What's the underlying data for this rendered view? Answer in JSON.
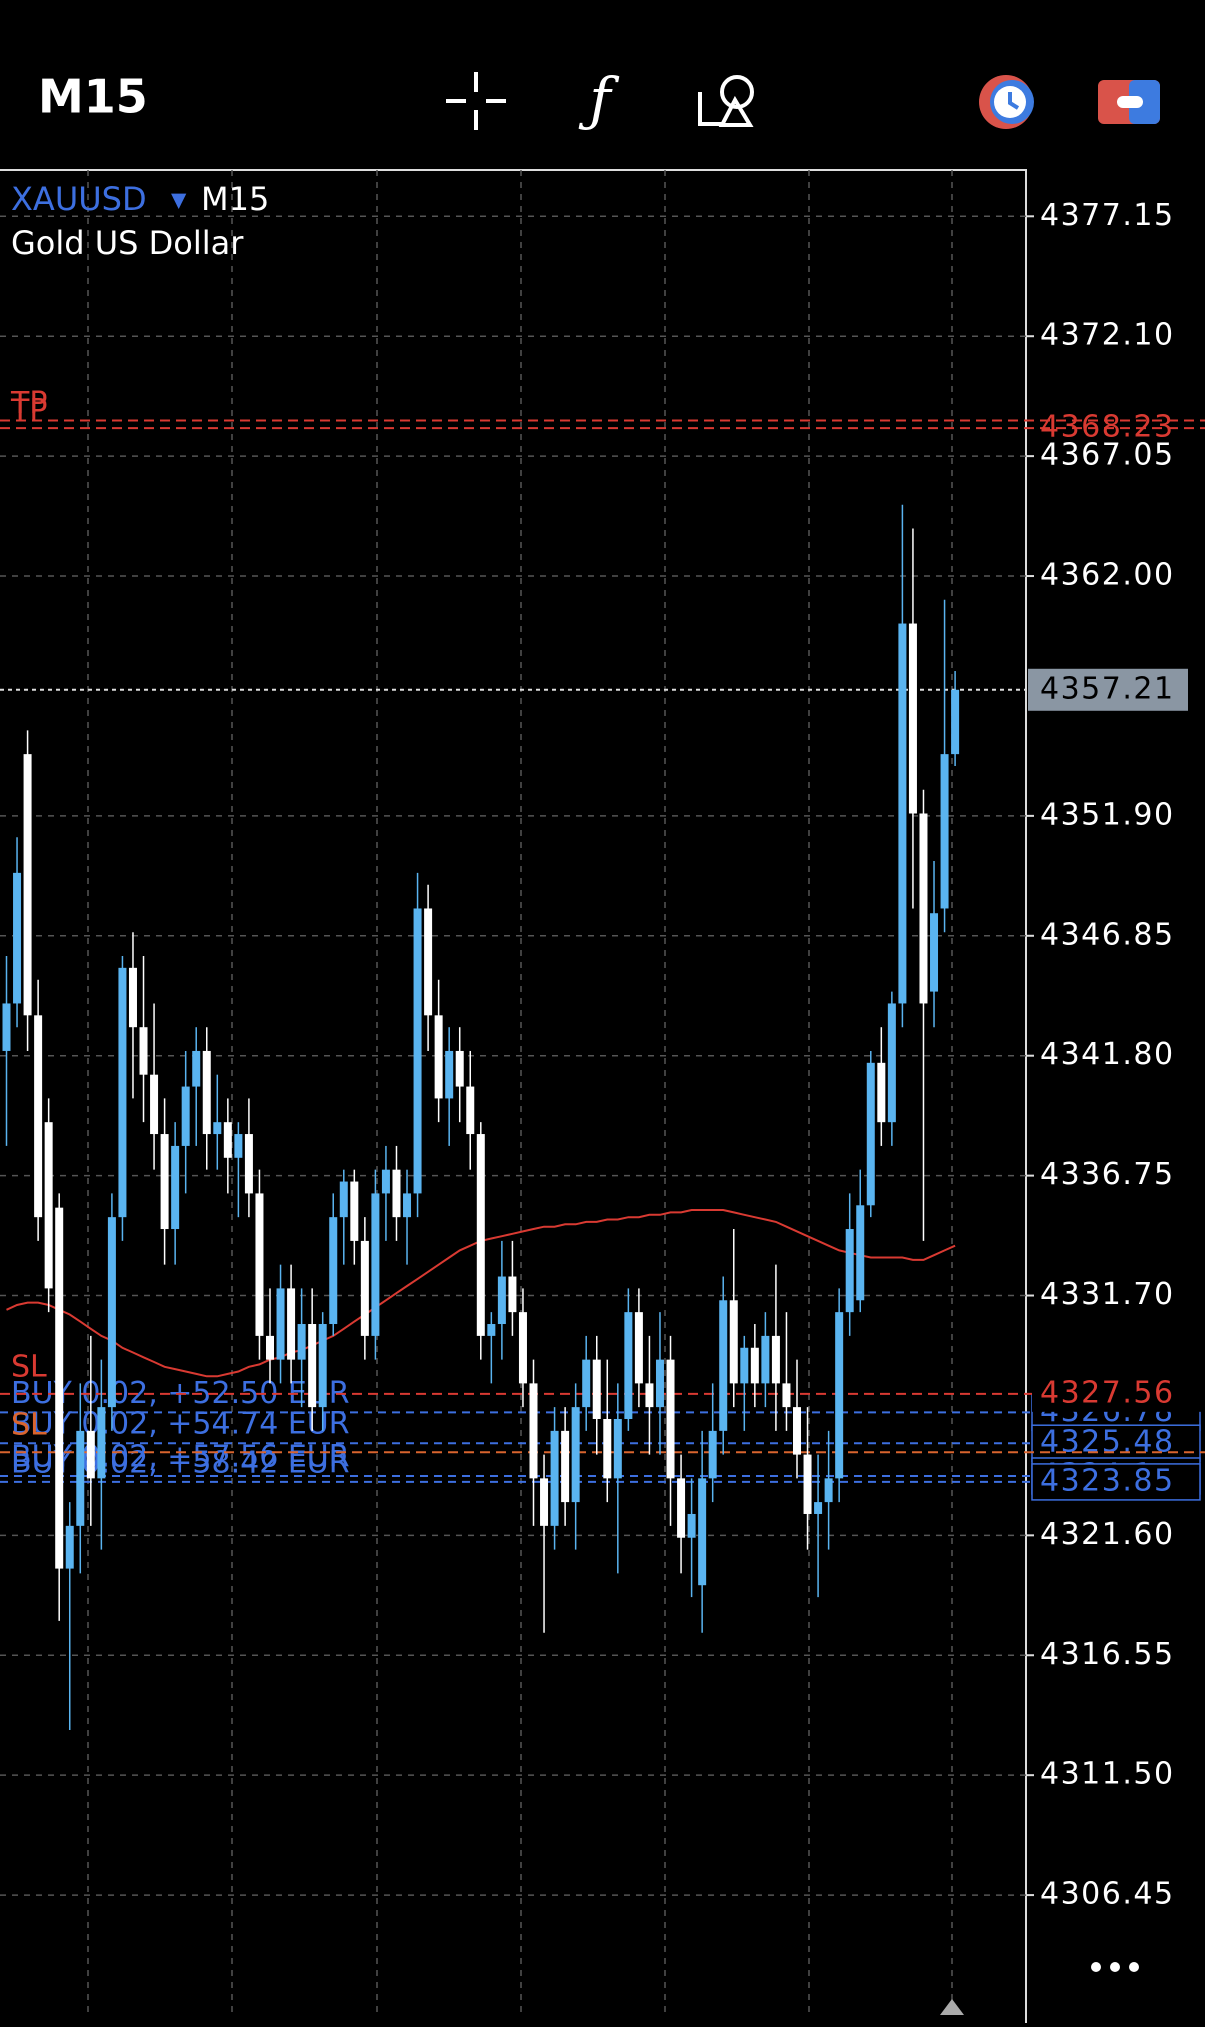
{
  "header": {
    "timeframe": "M15"
  },
  "chart_data": {
    "type": "candlestick",
    "symbol": "XAUUSD",
    "timeframe": "M15",
    "description": "Gold US Dollar",
    "up_color": "#5ab4f0",
    "down_color": "#ffffff",
    "ylim": [
      4301.4,
      4379.1
    ],
    "yticks": [
      4377.15,
      {
        "value": 4372.1,
        "label": "4372.10"
      },
      4367.05,
      {
        "value": 4362,
        "label": "4362.00"
      },
      {
        "value": 4351.9,
        "label": "4351.90"
      },
      4346.85,
      {
        "value": 4341.8,
        "label": "4341.80"
      },
      4336.75,
      {
        "value": 4331.7,
        "label": "4331.70"
      },
      {
        "value": 4321.6,
        "label": "4321.60"
      },
      4316.55,
      {
        "value": 4311.5,
        "label": "4311.50"
      },
      4306.45
    ],
    "grid": true,
    "current_price": 4357.21,
    "take_profits": [
      {
        "label": "TP",
        "price": 4368.55,
        "color": "#d93a32"
      },
      {
        "label": "TP",
        "price": 4368.23,
        "color": "#d93a32"
      }
    ],
    "stop_losses": [
      {
        "label": "SL",
        "price": 4327.56,
        "color": "#d93a32"
      },
      {
        "label": "SL",
        "price": 4325.1,
        "color": "#d9642e"
      }
    ],
    "orders": [
      {
        "label": "BUY 0.02, +52.50 EUR",
        "price": 4326.78
      },
      {
        "label": "BUY 0.02, +54.74 EUR",
        "price": 4325.48
      },
      {
        "label": "BUY 0.02, +57.56 EUR",
        "price": 4324.1
      },
      {
        "label": "BUY 0.02, +58.42 EUR",
        "price": 4323.85
      }
    ],
    "moving_average": {
      "color": "#d93a32",
      "values": [
        4331.1,
        4331.3,
        4331.4,
        4331.4,
        4331.3,
        4331.1,
        4330.9,
        4330.6,
        4330.3,
        4330.0,
        4329.8,
        4329.5,
        4329.3,
        4329.1,
        4328.9,
        4328.7,
        4328.6,
        4328.5,
        4328.4,
        4328.3,
        4328.3,
        4328.4,
        4328.5,
        4328.7,
        4328.8,
        4329.0,
        4329.1,
        4329.3,
        4329.4,
        4329.6,
        4329.8,
        4330.0,
        4330.3,
        4330.6,
        4330.9,
        4331.2,
        4331.5,
        4331.8,
        4332.1,
        4332.4,
        4332.7,
        4333.0,
        4333.3,
        4333.6,
        4333.8,
        4334.0,
        4334.1,
        4334.2,
        4334.3,
        4334.4,
        4334.5,
        4334.6,
        4334.6,
        4334.7,
        4334.7,
        4334.8,
        4334.8,
        4334.9,
        4334.9,
        4335.0,
        4335.0,
        4335.1,
        4335.1,
        4335.2,
        4335.2,
        4335.3,
        4335.3,
        4335.3,
        4335.3,
        4335.2,
        4335.1,
        4335.0,
        4334.9,
        4334.8,
        4334.6,
        4334.4,
        4334.2,
        4334.0,
        4333.8,
        4333.6,
        4333.5,
        4333.4,
        4333.3,
        4333.3,
        4333.3,
        4333.3,
        4333.2,
        4333.2,
        4333.4,
        4333.6,
        4333.8
      ]
    },
    "ohlc": [
      [
        4342,
        4346,
        4338,
        4344
      ],
      [
        4344,
        4351,
        4343,
        4349.5
      ],
      [
        4354.5,
        4355.5,
        4342,
        4343.5
      ],
      [
        4343.5,
        4345,
        4334,
        4335
      ],
      [
        4339,
        4340,
        4331,
        4332
      ],
      [
        4335.4,
        4336,
        4318,
        4320.2
      ],
      [
        4320.2,
        4323,
        4313.4,
        4322
      ],
      [
        4322,
        4328,
        4320,
        4326
      ],
      [
        4326,
        4330,
        4322,
        4324
      ],
      [
        4324,
        4329,
        4321,
        4327
      ],
      [
        4327,
        4336,
        4326,
        4335
      ],
      [
        4335,
        4346,
        4334,
        4345.5
      ],
      [
        4345.5,
        4347,
        4340,
        4343
      ],
      [
        4343,
        4346,
        4339,
        4341
      ],
      [
        4341,
        4344,
        4337,
        4338.5
      ],
      [
        4338.5,
        4340,
        4333,
        4334.5
      ],
      [
        4334.5,
        4339,
        4333,
        4338
      ],
      [
        4338,
        4342,
        4336,
        4340.5
      ],
      [
        4340.5,
        4343,
        4338,
        4342
      ],
      [
        4342,
        4343,
        4337,
        4338.5
      ],
      [
        4338.5,
        4341,
        4337,
        4339
      ],
      [
        4339,
        4340,
        4336,
        4337.5
      ],
      [
        4337.5,
        4339,
        4335,
        4338.5
      ],
      [
        4338.5,
        4340,
        4335,
        4336
      ],
      [
        4336,
        4337,
        4329,
        4330
      ],
      [
        4330,
        4332,
        4328,
        4329
      ],
      [
        4329,
        4333,
        4328,
        4332
      ],
      [
        4332,
        4333,
        4328,
        4329
      ],
      [
        4329,
        4332,
        4327,
        4330.5
      ],
      [
        4330.5,
        4332,
        4326,
        4327
      ],
      [
        4327,
        4331,
        4326,
        4330.5
      ],
      [
        4330.5,
        4336,
        4330,
        4335
      ],
      [
        4335,
        4337,
        4333,
        4336.5
      ],
      [
        4336.5,
        4337,
        4333,
        4334
      ],
      [
        4334,
        4335,
        4329,
        4330
      ],
      [
        4330,
        4337,
        4329,
        4336
      ],
      [
        4336,
        4338,
        4334,
        4337
      ],
      [
        4337,
        4338,
        4334,
        4335
      ],
      [
        4335,
        4337,
        4333,
        4336
      ],
      [
        4336,
        4349.5,
        4335,
        4348
      ],
      [
        4348,
        4349,
        4342,
        4343.5
      ],
      [
        4343.5,
        4345,
        4339,
        4340
      ],
      [
        4340,
        4343,
        4338,
        4342
      ],
      [
        4342,
        4343,
        4339,
        4340.5
      ],
      [
        4340.5,
        4342,
        4337,
        4338.5
      ],
      [
        4338.5,
        4339,
        4329,
        4330
      ],
      [
        4330,
        4331,
        4328,
        4330.5
      ],
      [
        4330.5,
        4334,
        4329,
        4332.5
      ],
      [
        4332.5,
        4334,
        4330,
        4331
      ],
      [
        4331,
        4332,
        4327,
        4328
      ],
      [
        4328,
        4329,
        4322,
        4324
      ],
      [
        4324,
        4325,
        4317.5,
        4322
      ],
      [
        4322,
        4327,
        4321,
        4326
      ],
      [
        4326,
        4327,
        4322,
        4323
      ],
      [
        4323,
        4328,
        4321,
        4327
      ],
      [
        4327,
        4330,
        4326,
        4329
      ],
      [
        4329,
        4330,
        4325,
        4326.5
      ],
      [
        4326.5,
        4329,
        4323,
        4324
      ],
      [
        4324,
        4328,
        4320,
        4326.5
      ],
      [
        4326.5,
        4332,
        4326,
        4331
      ],
      [
        4331,
        4332,
        4327,
        4328
      ],
      [
        4328,
        4330,
        4325,
        4327
      ],
      [
        4327,
        4331,
        4325,
        4329
      ],
      [
        4329,
        4330,
        4322,
        4324
      ],
      [
        4324,
        4325,
        4320,
        4321.5
      ],
      [
        4321.5,
        4324,
        4319,
        4322.5
      ],
      [
        4319.5,
        4326,
        4317.5,
        4324
      ],
      [
        4324,
        4328,
        4323,
        4326
      ],
      [
        4326,
        4332.5,
        4325,
        4331.5
      ],
      [
        4331.5,
        4334.5,
        4327,
        4328
      ],
      [
        4328,
        4330,
        4326,
        4329.5
      ],
      [
        4329.5,
        4330.5,
        4327,
        4328
      ],
      [
        4328,
        4331,
        4327,
        4330
      ],
      [
        4330,
        4333,
        4326,
        4328
      ],
      [
        4328,
        4331,
        4326,
        4327
      ],
      [
        4327,
        4329,
        4324,
        4325
      ],
      [
        4325,
        4327,
        4321,
        4322.5
      ],
      [
        4322.5,
        4325,
        4319,
        4323
      ],
      [
        4323,
        4326,
        4321,
        4324
      ],
      [
        4324,
        4332,
        4323,
        4331
      ],
      [
        4331,
        4336,
        4330,
        4334.5
      ],
      [
        4331.5,
        4337,
        4331,
        4335.5
      ],
      [
        4335.5,
        4342,
        4335,
        4341.5
      ],
      [
        4341.5,
        4343,
        4338,
        4339
      ],
      [
        4339,
        4344.5,
        4338,
        4344
      ],
      [
        4344,
        4365,
        4343,
        4360
      ],
      [
        4360,
        4364,
        4348,
        4352
      ],
      [
        4352,
        4353,
        4334,
        4344
      ],
      [
        4344.5,
        4350,
        4343,
        4347.8
      ],
      [
        4348,
        4361,
        4347,
        4354.5
      ],
      [
        4354.5,
        4358,
        4354,
        4357.21
      ]
    ]
  }
}
